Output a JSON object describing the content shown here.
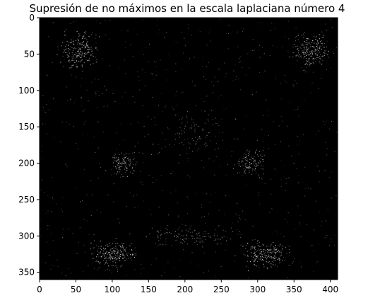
{
  "chart_data": {
    "type": "heatmap",
    "title": "Supresión de no máximos en la escala laplaciana número 4",
    "xlabel": "",
    "ylabel": "",
    "xlim": [
      0,
      410
    ],
    "ylim": [
      360,
      0
    ],
    "x_ticks": [
      0,
      50,
      100,
      150,
      200,
      250,
      300,
      350,
      400
    ],
    "y_ticks": [
      0,
      50,
      100,
      150,
      200,
      250,
      300,
      350
    ],
    "x_tick_labels": [
      "0",
      "50",
      "100",
      "150",
      "200",
      "250",
      "300",
      "350",
      "400"
    ],
    "y_tick_labels": [
      "0",
      "50",
      "100",
      "150",
      "200",
      "250",
      "300",
      "350"
    ],
    "colormap": "gray",
    "background_color": "#000000",
    "point_color": "#ffffff",
    "grid": false,
    "clusters": [
      {
        "cx": 55,
        "cy": 45,
        "rx": 35,
        "ry": 35,
        "n": 220,
        "bright": 0.85
      },
      {
        "cx": 370,
        "cy": 45,
        "rx": 35,
        "ry": 35,
        "n": 220,
        "bright": 0.85
      },
      {
        "cx": 115,
        "cy": 200,
        "rx": 25,
        "ry": 22,
        "n": 120,
        "bright": 0.7
      },
      {
        "cx": 290,
        "cy": 200,
        "rx": 28,
        "ry": 22,
        "n": 120,
        "bright": 0.7
      },
      {
        "cx": 100,
        "cy": 325,
        "rx": 40,
        "ry": 25,
        "n": 220,
        "bright": 0.9
      },
      {
        "cx": 310,
        "cy": 325,
        "rx": 45,
        "ry": 25,
        "n": 220,
        "bright": 0.9
      },
      {
        "cx": 205,
        "cy": 300,
        "rx": 90,
        "ry": 20,
        "n": 120,
        "bright": 0.5
      },
      {
        "cx": 205,
        "cy": 160,
        "rx": 60,
        "ry": 50,
        "n": 90,
        "bright": 0.45
      }
    ],
    "background_noise_points": 700
  }
}
